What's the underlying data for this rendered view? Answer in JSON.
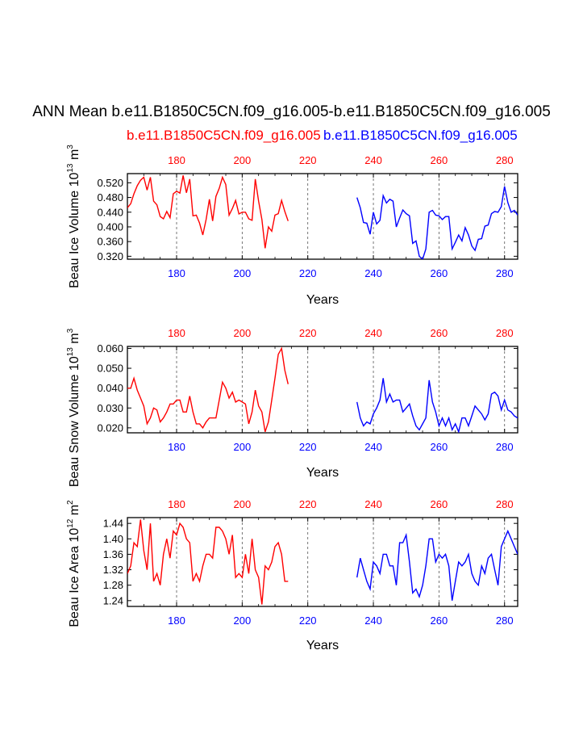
{
  "title": "ANN Mean b.e11.B1850C5CN.f09_g16.005-b.e11.B1850C5CN.f09_g16.005",
  "legend": [
    {
      "label": "b.e11.B1850C5CN.f09_g16.005",
      "color": "#ff0000"
    },
    {
      "label": "b.e11.B1850C5CN.f09_g16.005",
      "color": "#0000ff"
    }
  ],
  "chart_data": [
    {
      "type": "line",
      "ylabel": "Beau Ice Volume 10",
      "ylabel_exp": "13",
      "ylabel_unit": " m",
      "ylabel_unit_exp": "3",
      "xlabel": "Years",
      "xlim": [
        165,
        284
      ],
      "ylim": [
        0.312,
        0.545
      ],
      "yticks": [
        "0.320",
        "0.360",
        "0.400",
        "0.440",
        "0.480",
        "0.520"
      ],
      "xticks": [
        "180",
        "200",
        "220",
        "240",
        "260",
        "280"
      ],
      "grid_x": [
        180,
        200,
        220,
        240,
        260,
        280
      ],
      "series": [
        {
          "color": "#ff0000",
          "x_start": 165,
          "values": [
            0.452,
            0.463,
            0.49,
            0.512,
            0.527,
            0.535,
            0.5,
            0.535,
            0.47,
            0.46,
            0.428,
            0.422,
            0.442,
            0.425,
            0.49,
            0.497,
            0.492,
            0.54,
            0.493,
            0.53,
            0.43,
            0.432,
            0.41,
            0.378,
            0.42,
            0.475,
            0.416,
            0.483,
            0.505,
            0.535,
            0.515,
            0.432,
            0.45,
            0.472,
            0.435,
            0.44,
            0.44,
            0.422,
            0.418,
            0.53,
            0.47,
            0.42,
            0.342,
            0.4,
            0.388,
            0.432,
            0.436,
            0.472,
            0.442,
            0.416
          ]
        },
        {
          "color": "#0000ff",
          "x_start": 235,
          "values": [
            0.48,
            0.452,
            0.412,
            0.41,
            0.38,
            0.44,
            0.408,
            0.418,
            0.485,
            0.465,
            0.475,
            0.47,
            0.4,
            0.424,
            0.446,
            0.436,
            0.43,
            0.355,
            0.362,
            0.32,
            0.312,
            0.34,
            0.44,
            0.445,
            0.432,
            0.43,
            0.42,
            0.428,
            0.428,
            0.34,
            0.358,
            0.378,
            0.362,
            0.398,
            0.378,
            0.348,
            0.336,
            0.366,
            0.368,
            0.402,
            0.405,
            0.436,
            0.442,
            0.44,
            0.455,
            0.51,
            0.466,
            0.44,
            0.445,
            0.432
          ]
        }
      ]
    },
    {
      "type": "line",
      "ylabel": "Beau Snow Volume 10",
      "ylabel_exp": "13",
      "ylabel_unit": " m",
      "ylabel_unit_exp": "3",
      "xlabel": "Years",
      "xlim": [
        165,
        284
      ],
      "ylim": [
        0.0175,
        0.061
      ],
      "yticks": [
        "0.020",
        "0.030",
        "0.040",
        "0.050",
        "0.060"
      ],
      "xticks": [
        "180",
        "200",
        "220",
        "240",
        "260",
        "280"
      ],
      "grid_x": [
        180,
        200,
        220,
        240,
        260,
        280
      ],
      "series": [
        {
          "color": "#ff0000",
          "x_start": 165,
          "values": [
            0.04,
            0.04,
            0.045,
            0.039,
            0.035,
            0.031,
            0.022,
            0.025,
            0.03,
            0.029,
            0.023,
            0.025,
            0.028,
            0.032,
            0.032,
            0.034,
            0.034,
            0.028,
            0.028,
            0.036,
            0.028,
            0.022,
            0.022,
            0.02,
            0.023,
            0.025,
            0.025,
            0.025,
            0.034,
            0.043,
            0.04,
            0.035,
            0.038,
            0.033,
            0.034,
            0.033,
            0.032,
            0.022,
            0.028,
            0.039,
            0.031,
            0.028,
            0.018,
            0.023,
            0.034,
            0.045,
            0.057,
            0.06,
            0.049,
            0.042
          ]
        },
        {
          "color": "#0000ff",
          "x_start": 235,
          "values": [
            0.033,
            0.025,
            0.021,
            0.023,
            0.022,
            0.027,
            0.03,
            0.034,
            0.045,
            0.033,
            0.037,
            0.033,
            0.034,
            0.034,
            0.028,
            0.03,
            0.032,
            0.026,
            0.021,
            0.019,
            0.022,
            0.025,
            0.044,
            0.033,
            0.028,
            0.021,
            0.025,
            0.021,
            0.025,
            0.019,
            0.022,
            0.018,
            0.025,
            0.025,
            0.021,
            0.026,
            0.031,
            0.029,
            0.027,
            0.024,
            0.027,
            0.037,
            0.038,
            0.036,
            0.029,
            0.034,
            0.029,
            0.028,
            0.026,
            0.025
          ]
        }
      ]
    },
    {
      "type": "line",
      "ylabel": "Beau Ice Area 10",
      "ylabel_exp": "12",
      "ylabel_unit": " m",
      "ylabel_unit_exp": "2",
      "xlabel": "Years",
      "xlim": [
        165,
        284
      ],
      "ylim": [
        1.225,
        1.455
      ],
      "yticks": [
        "1.24",
        "1.28",
        "1.32",
        "1.36",
        "1.40",
        "1.44"
      ],
      "xticks": [
        "180",
        "200",
        "220",
        "240",
        "260",
        "280"
      ],
      "grid_x": [
        180,
        200,
        220,
        240,
        260,
        280
      ],
      "series": [
        {
          "color": "#ff0000",
          "x_start": 165,
          "values": [
            1.31,
            1.33,
            1.39,
            1.38,
            1.45,
            1.37,
            1.32,
            1.44,
            1.29,
            1.31,
            1.28,
            1.36,
            1.4,
            1.35,
            1.42,
            1.41,
            1.44,
            1.43,
            1.4,
            1.39,
            1.29,
            1.31,
            1.29,
            1.33,
            1.36,
            1.36,
            1.35,
            1.43,
            1.43,
            1.42,
            1.4,
            1.36,
            1.41,
            1.3,
            1.31,
            1.3,
            1.36,
            1.31,
            1.4,
            1.32,
            1.3,
            1.23,
            1.33,
            1.32,
            1.34,
            1.38,
            1.39,
            1.36,
            1.29,
            1.29
          ]
        },
        {
          "color": "#0000ff",
          "x_start": 235,
          "values": [
            1.3,
            1.35,
            1.32,
            1.29,
            1.27,
            1.34,
            1.33,
            1.31,
            1.36,
            1.36,
            1.33,
            1.33,
            1.28,
            1.39,
            1.39,
            1.41,
            1.34,
            1.26,
            1.27,
            1.25,
            1.28,
            1.33,
            1.4,
            1.4,
            1.34,
            1.36,
            1.35,
            1.36,
            1.33,
            1.24,
            1.29,
            1.34,
            1.33,
            1.34,
            1.36,
            1.31,
            1.29,
            1.28,
            1.33,
            1.31,
            1.35,
            1.36,
            1.32,
            1.28,
            1.38,
            1.4,
            1.42,
            1.4,
            1.38,
            1.36
          ]
        }
      ]
    }
  ]
}
